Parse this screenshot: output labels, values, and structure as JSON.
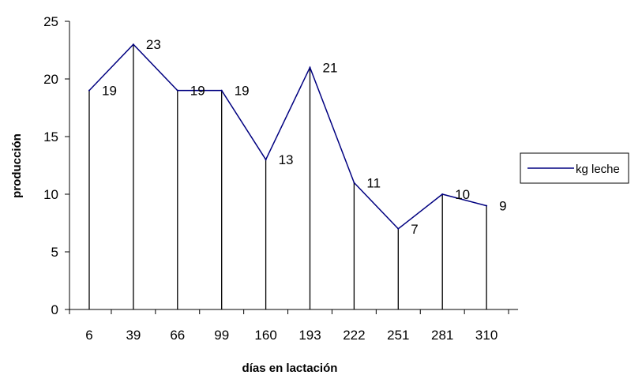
{
  "chart_data": {
    "type": "line",
    "categories": [
      "6",
      "39",
      "66",
      "99",
      "160",
      "193",
      "222",
      "251",
      "281",
      "310"
    ],
    "series": [
      {
        "name": "kg leche",
        "values": [
          19,
          23,
          19,
          19,
          13,
          21,
          11,
          7,
          10,
          9
        ],
        "color": "#000080"
      }
    ],
    "drop_lines": true,
    "data_labels": [
      "19",
      "23",
      "19",
      "19",
      "13",
      "21",
      "11",
      "7",
      "10",
      "9"
    ],
    "xlabel": "días en lactación",
    "ylabel": "producción",
    "ylim": [
      0,
      25
    ],
    "yticks": [
      "0",
      "5",
      "10",
      "15",
      "20",
      "25"
    ],
    "grid": false,
    "legend_position": "right"
  }
}
